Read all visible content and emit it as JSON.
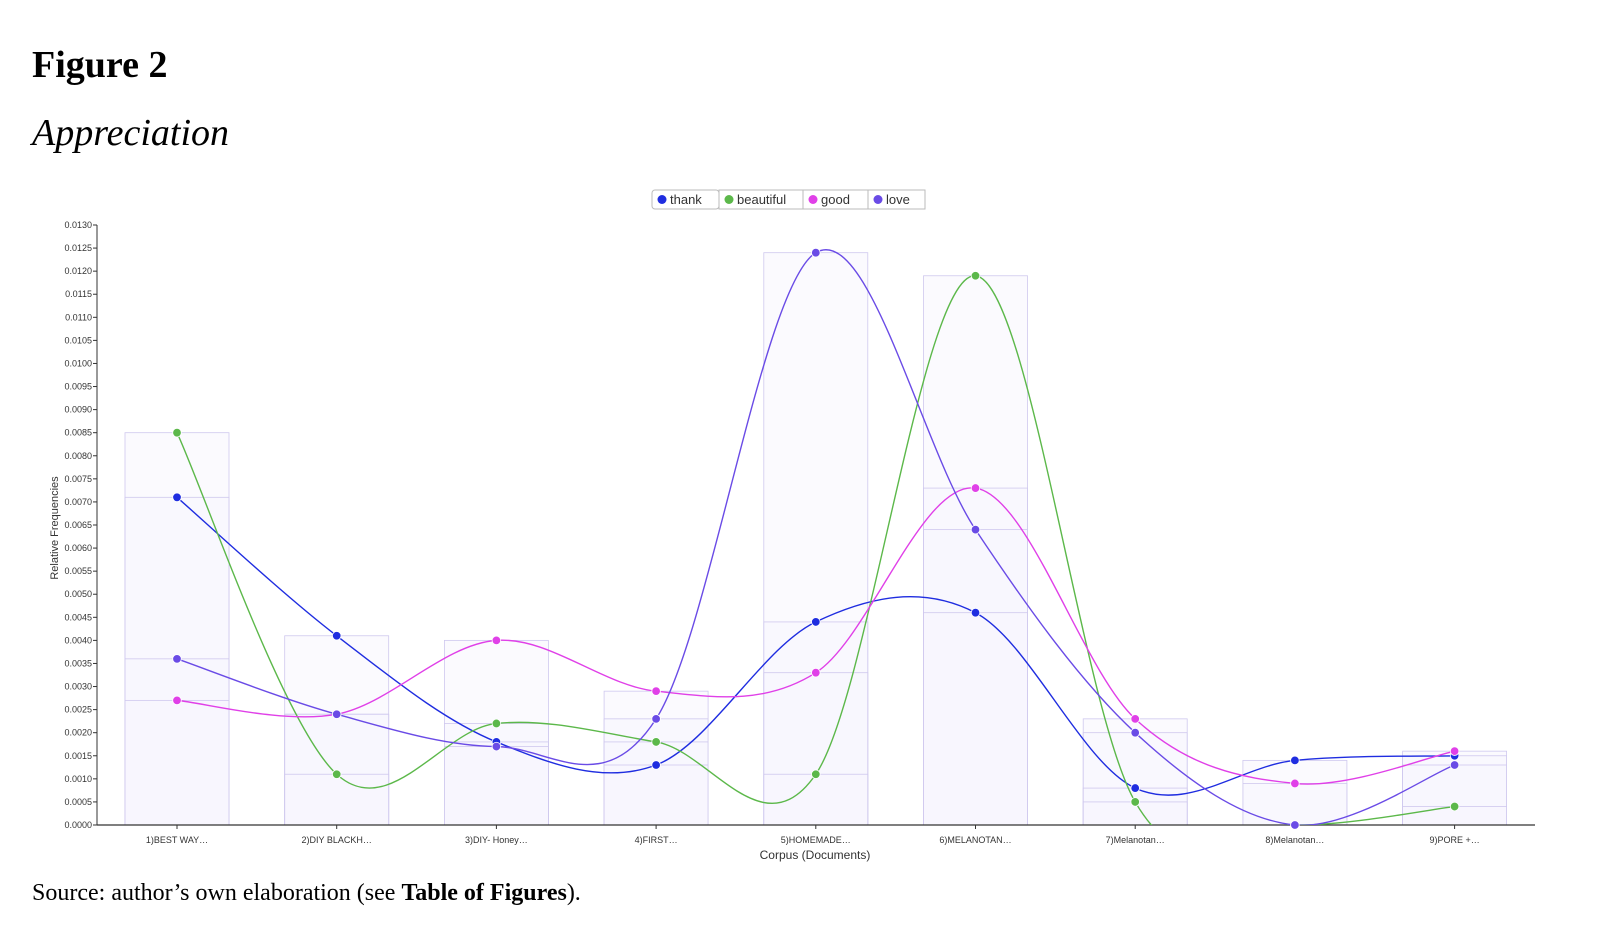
{
  "figure": {
    "label": "Figure 2",
    "title": "Appreciation"
  },
  "source": {
    "prefix": "Source: author’s own elaboration (see ",
    "bold": "Table of Figures",
    "suffix": ")."
  },
  "colors": {
    "thank": "#1f2de0",
    "beautiful": "#5cb84a",
    "good": "#e040e8",
    "love": "#6a4be6",
    "axis": "#333333",
    "bar_fill": "#f7f5fd",
    "bar_stroke": "#cfc8ee"
  },
  "chart_data": {
    "type": "line",
    "title": "",
    "xlabel": "Corpus (Documents)",
    "ylabel": "Relative Frequencies",
    "ylim": [
      0,
      0.013
    ],
    "y_ticks": [
      "0.0000",
      "0.0005",
      "0.0010",
      "0.0015",
      "0.0020",
      "0.0025",
      "0.0030",
      "0.0035",
      "0.0040",
      "0.0045",
      "0.0050",
      "0.0055",
      "0.0060",
      "0.0065",
      "0.0070",
      "0.0075",
      "0.0080",
      "0.0085",
      "0.0090",
      "0.0095",
      "0.0100",
      "0.0105",
      "0.0110",
      "0.0115",
      "0.0120",
      "0.0125",
      "0.0130"
    ],
    "legend_position": "top-center",
    "grid": false,
    "categories": [
      "1)BEST WAY…",
      "2)DIY BLACKH…",
      "3)DIY- Honey…",
      "4)FIRST…",
      "5)HOMEMADE…",
      "6)MELANOTAN…",
      "7)Melanotan…",
      "8)Melanotan…",
      "9)PORE +…"
    ],
    "series": [
      {
        "name": "thank",
        "values": [
          0.0071,
          0.0041,
          0.0018,
          0.0013,
          0.0044,
          0.0046,
          0.0008,
          0.0014,
          0.0015
        ]
      },
      {
        "name": "beautiful",
        "values": [
          0.0085,
          0.0011,
          0.0022,
          0.0018,
          0.0011,
          0.0119,
          0.0005,
          0.0,
          0.0004
        ]
      },
      {
        "name": "good",
        "values": [
          0.0027,
          0.0024,
          0.004,
          0.0029,
          0.0033,
          0.0073,
          0.0023,
          0.0009,
          0.0016
        ]
      },
      {
        "name": "love",
        "values": [
          0.0036,
          0.0024,
          0.0017,
          0.0023,
          0.0124,
          0.0064,
          0.002,
          0.0,
          0.0013
        ]
      }
    ]
  }
}
